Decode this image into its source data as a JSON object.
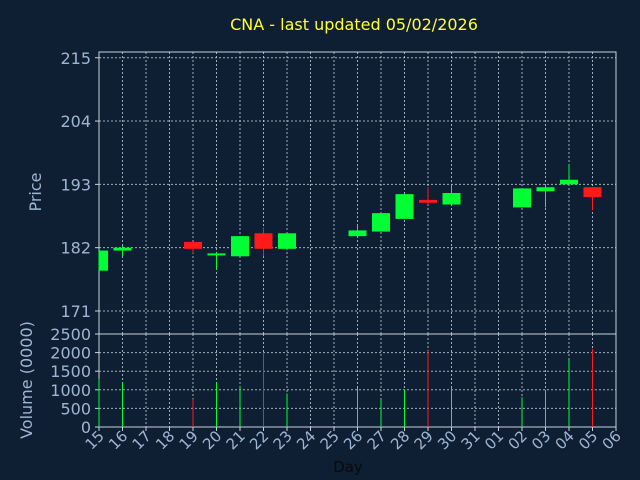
{
  "chart_data": {
    "type": "candlestick",
    "title": "CNA - last updated 05/02/2026",
    "xlabel": "Day",
    "price_ylabel": "Price",
    "volume_ylabel": "Volume (0000)",
    "price_ylim": [
      167,
      216
    ],
    "price_ticks": [
      171,
      182,
      193,
      204,
      215
    ],
    "volume_ylim": [
      0,
      2500
    ],
    "volume_ticks": [
      0,
      500,
      1000,
      1500,
      2000,
      2500
    ],
    "grid": true,
    "x_labels": [
      "15",
      "16",
      "17",
      "18",
      "19",
      "20",
      "21",
      "22",
      "23",
      "24",
      "25",
      "26",
      "27",
      "28",
      "29",
      "30",
      "31",
      "01",
      "02",
      "03",
      "04",
      "05",
      "06"
    ],
    "up_color": "#00ff33",
    "down_color": "#ff1a1a",
    "candles": [
      {
        "x": "15",
        "open": 178.0,
        "high": 181.5,
        "low": 178.0,
        "close": 181.5,
        "volume": 1300
      },
      {
        "x": "16",
        "open": 181.5,
        "high": 182.3,
        "low": 180.5,
        "close": 182.0,
        "volume": 1200
      },
      {
        "x": "19",
        "open": 183.0,
        "high": 183.0,
        "low": 181.0,
        "close": 181.8,
        "volume": 750
      },
      {
        "x": "20",
        "open": 180.8,
        "high": 181.3,
        "low": 178.2,
        "close": 181.0,
        "volume": 1200
      },
      {
        "x": "21",
        "open": 180.5,
        "high": 184.0,
        "low": 180.5,
        "close": 184.0,
        "volume": 1100
      },
      {
        "x": "22",
        "open": 184.5,
        "high": 185.5,
        "low": 180.5,
        "close": 181.8,
        "volume": 2000
      },
      {
        "x": "23",
        "open": 181.8,
        "high": 184.5,
        "low": 181.8,
        "close": 184.5,
        "volume": 900
      },
      {
        "x": "26",
        "open": 184.0,
        "high": 186.0,
        "low": 184.0,
        "close": 185.0,
        "volume": 1050
      },
      {
        "x": "27",
        "open": 184.8,
        "high": 188.0,
        "low": 184.8,
        "close": 188.0,
        "volume": 750
      },
      {
        "x": "28",
        "open": 187.0,
        "high": 191.3,
        "low": 187.0,
        "close": 191.3,
        "volume": 1000
      },
      {
        "x": "29",
        "open": 190.3,
        "high": 192.5,
        "low": 189.5,
        "close": 189.8,
        "volume": 2050
      },
      {
        "x": "30",
        "open": 189.5,
        "high": 193.0,
        "low": 189.5,
        "close": 191.5,
        "volume": 1050
      },
      {
        "x": "02",
        "open": 189.0,
        "high": 192.3,
        "low": 189.0,
        "close": 192.3,
        "volume": 800
      },
      {
        "x": "03",
        "open": 191.8,
        "high": 193.0,
        "low": 189.0,
        "close": 192.5,
        "volume": 1000
      },
      {
        "x": "04",
        "open": 193.0,
        "high": 196.5,
        "low": 193.0,
        "close": 193.8,
        "volume": 1800
      },
      {
        "x": "05",
        "open": 192.5,
        "high": 192.5,
        "low": 188.5,
        "close": 190.8,
        "volume": 2100
      }
    ]
  }
}
